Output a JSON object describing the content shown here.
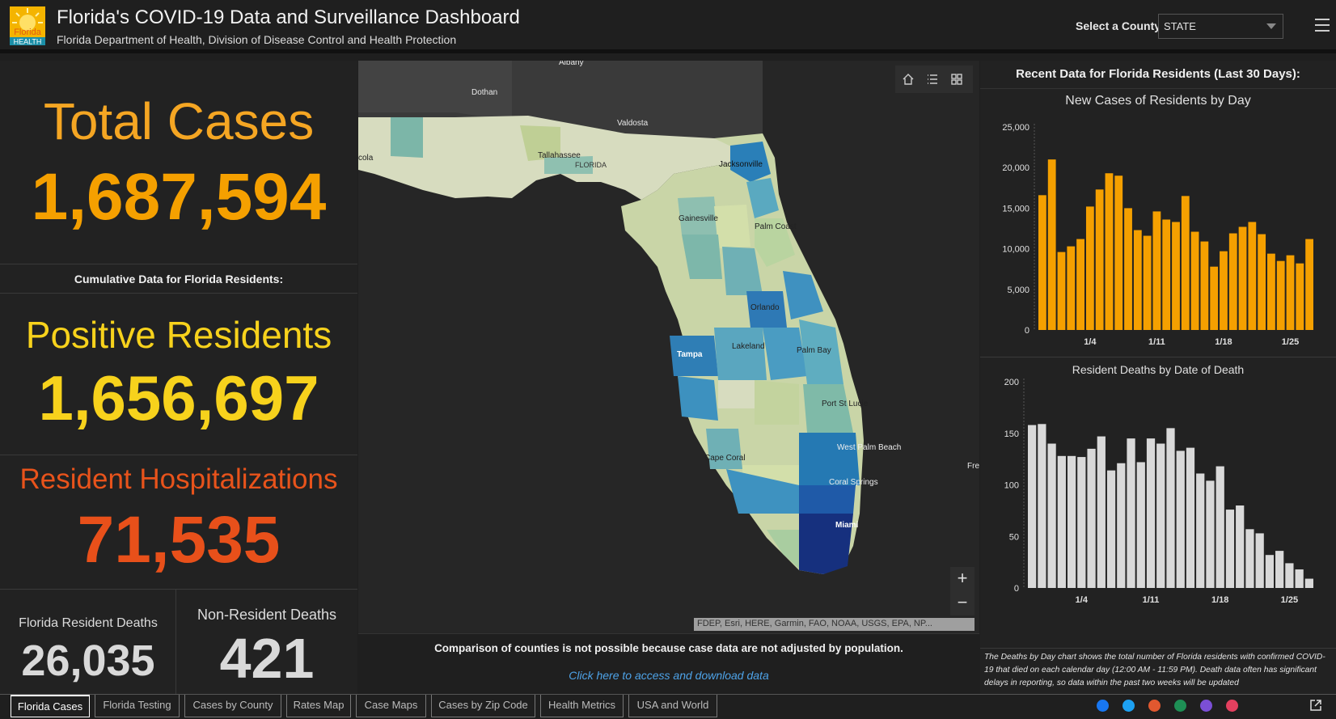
{
  "header": {
    "logo_text_top": "Florida",
    "logo_text_bottom": "HEALTH",
    "title": "Florida's COVID-19 Data and Surveillance Dashboard",
    "subtitle": "Florida Department of Health, Division of Disease Control and Health Protection",
    "county_label": "Select a County",
    "county_value": "STATE"
  },
  "left": {
    "total_label": "Total Cases",
    "total_value": "1,687,594",
    "cumulative_label": "Cumulative Data for Florida Residents:",
    "positive_label": "Positive Residents",
    "positive_value": "1,656,697",
    "hosp_label": "Resident Hospitalizations",
    "hosp_value": "71,535",
    "res_deaths_label": "Florida Resident Deaths",
    "res_deaths_value": "26,035",
    "nonres_deaths_label": "Non-Resident Deaths",
    "nonres_deaths_value": "421"
  },
  "map": {
    "labels": [
      "Albany",
      "Dothan",
      "Valdosta",
      "Tallahassee",
      "FLORIDA",
      "Jacksonville",
      "Gainesville",
      "Palm Coast",
      "Orlando",
      "Lakeland",
      "Tampa",
      "Palm Bay",
      "Port St Lucie",
      "West Palm Beach",
      "Cape Coral",
      "Coral Springs",
      "Miami",
      "Fre",
      "cola"
    ],
    "attribution": "FDEP, Esri, HERE, Garmin, FAO, NOAA, USGS, EPA, NP...",
    "zoom_in": "+",
    "zoom_out": "−",
    "footer_note": "Comparison of counties is not possible because case data are not adjusted by population.",
    "footer_link": "Click here to access and download data"
  },
  "right": {
    "title": "Recent Data for Florida Residents (Last 30 Days):",
    "death_note": "The Deaths by Day chart shows the total number of Florida residents with confirmed COVID-19 that died on each calendar day (12:00 AM - 11:59 PM). Death data often has significant delays in reporting, so data within the past two weeks will be updated"
  },
  "chart_data": [
    {
      "type": "bar",
      "title": "New Cases of Residents by Day",
      "x_tick_labels": [
        "1/4",
        "1/11",
        "1/18",
        "1/25"
      ],
      "y_ticks": [
        "25,000",
        "20,000",
        "15,000",
        "10,000",
        "5,000",
        "0"
      ],
      "ylim": [
        0,
        25000
      ],
      "color": "#f5a000",
      "values": [
        16600,
        21000,
        9600,
        10300,
        11200,
        15200,
        17300,
        19300,
        19000,
        15000,
        12300,
        11600,
        14600,
        13600,
        13300,
        16500,
        12100,
        10900,
        7800,
        9700,
        11900,
        12700,
        13300,
        11800,
        9400,
        8500,
        9200,
        8200,
        11200
      ]
    },
    {
      "type": "bar",
      "title": "Resident Deaths by Date of Death",
      "x_tick_labels": [
        "1/4",
        "1/11",
        "1/18",
        "1/25"
      ],
      "y_ticks": [
        "200",
        "150",
        "100",
        "50",
        "0"
      ],
      "ylim": [
        0,
        200
      ],
      "color": "#d9d9d9",
      "values": [
        158,
        159,
        140,
        128,
        128,
        127,
        135,
        147,
        114,
        121,
        145,
        122,
        145,
        140,
        155,
        133,
        136,
        111,
        104,
        118,
        76,
        80,
        57,
        53,
        32,
        36,
        24,
        18,
        9
      ]
    }
  ],
  "tabs": [
    "Florida Cases",
    "Florida Testing",
    "Cases by County",
    "Rates Map",
    "Case Maps",
    "Cases by Zip Code",
    "Health Metrics",
    "USA and World"
  ],
  "social_colors": [
    "#1877f2",
    "#1da1f2",
    "#e1582f",
    "#1e8f55",
    "#7b4fd6",
    "#e4405f"
  ]
}
